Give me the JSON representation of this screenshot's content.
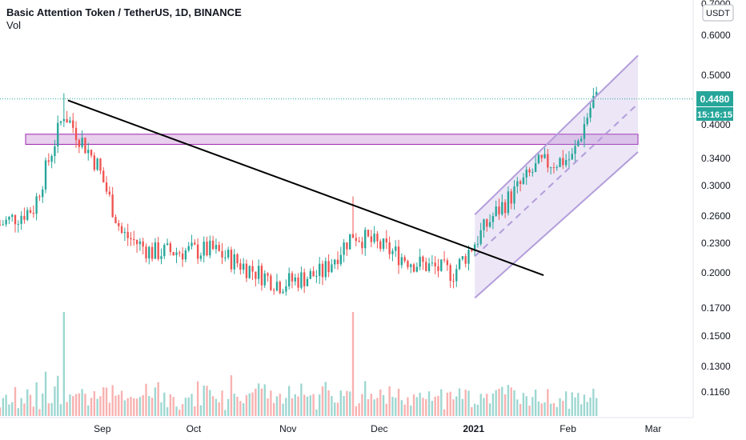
{
  "header": {
    "symbol_line": "Basic Attention Token / TetherUS, 1D, BINANCE",
    "vol_label": "Vol"
  },
  "price_axis": {
    "currency_badge": "USDT",
    "ticks": [
      "0.7000",
      "0.6000",
      "0.5000",
      "0.4000",
      "0.3400",
      "0.3000",
      "0.2600",
      "0.2300",
      "0.2000",
      "0.1700",
      "0.1500",
      "0.1300",
      "0.1160"
    ],
    "last_price": "0.4480",
    "countdown": "15:16:15"
  },
  "time_axis": {
    "labels": [
      "Sep",
      "Oct",
      "Nov",
      "Dec",
      "2021",
      "Feb",
      "Mar"
    ]
  },
  "colors": {
    "up": "#26a69a",
    "down": "#ef5350",
    "up_vol": "#26a69a",
    "down_vol": "#ef5350",
    "trendline": "#000000",
    "zone": "#9c27b0",
    "channel": "#b39ddb",
    "last_price_bg": "#26a69a"
  },
  "chart_data": {
    "type": "candlestick",
    "scale": "log",
    "x_range": [
      "2020-08-01",
      "2021-03-10"
    ],
    "y_range": [
      0.165,
      0.72
    ],
    "last_price": 0.448,
    "key_points": [
      {
        "date": "2020-08-01",
        "close": 0.25
      },
      {
        "date": "2020-08-12",
        "close": 0.27
      },
      {
        "date": "2020-08-22",
        "high": 0.46,
        "close": 0.42
      },
      {
        "date": "2020-09-02",
        "close": 0.33
      },
      {
        "date": "2020-09-10",
        "close": 0.24
      },
      {
        "date": "2020-09-20",
        "close": 0.22
      },
      {
        "date": "2020-10-10",
        "close": 0.222
      },
      {
        "date": "2020-11-01",
        "close": 0.19
      },
      {
        "date": "2020-11-15",
        "close": 0.2
      },
      {
        "date": "2020-11-25",
        "high": 0.285,
        "close": 0.24
      },
      {
        "date": "2020-12-15",
        "close": 0.21
      },
      {
        "date": "2020-12-28",
        "close": 0.2
      },
      {
        "date": "2021-01-10",
        "close": 0.26
      },
      {
        "date": "2021-01-25",
        "close": 0.33
      },
      {
        "date": "2021-02-05",
        "close": 0.34
      },
      {
        "date": "2021-02-12",
        "close": 0.448
      }
    ],
    "drawings": {
      "descending_trendline": {
        "from": [
          "2020-08-22",
          0.455
        ],
        "to": [
          "2021-01-24",
          0.213
        ]
      },
      "horizontal_zone": {
        "from_date": "2020-08-01",
        "to_date": "2021-02-24",
        "low": 0.371,
        "high": 0.386
      },
      "rising_channel": {
        "upper": [
          [
            "2021-01-03",
            0.262
          ],
          [
            "2021-02-24",
            0.52
          ]
        ],
        "lower": [
          [
            "2021-01-03",
            0.182
          ],
          [
            "2021-02-24",
            0.345
          ]
        ]
      }
    }
  }
}
